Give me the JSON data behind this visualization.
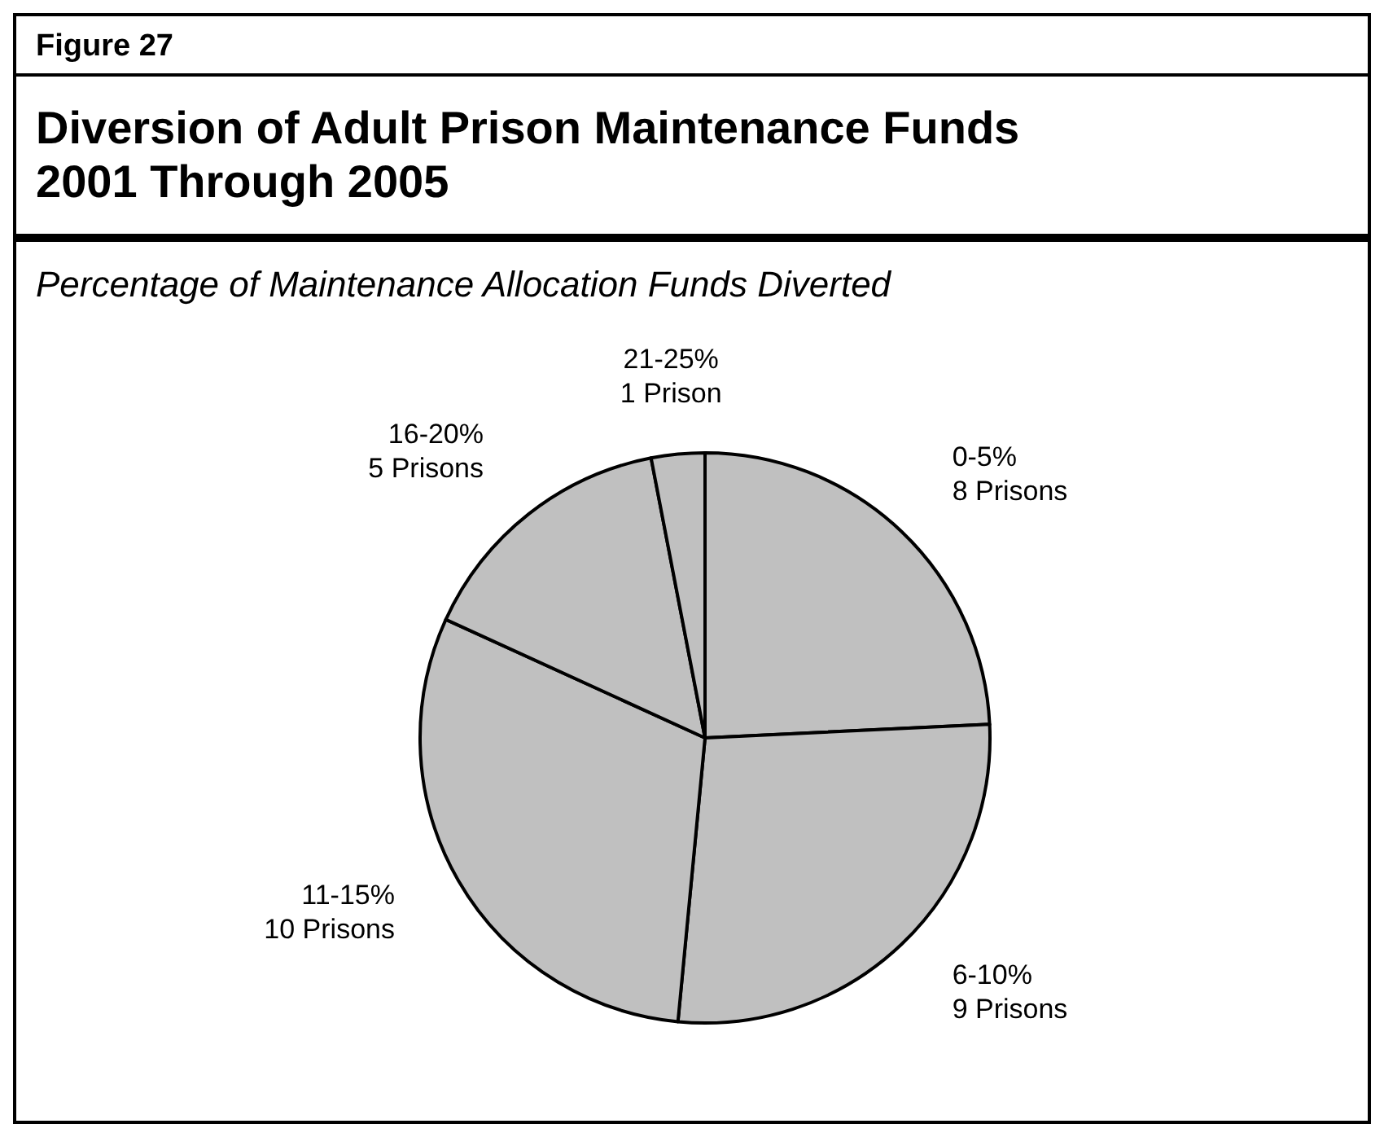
{
  "chart_data": {
    "type": "pie",
    "title": "Diversion of Adult Prison Maintenance Funds 2001 Through 2005",
    "subtitle": "Percentage of Maintenance Allocation Funds Diverted",
    "annotations": [
      "Figure 27"
    ],
    "categories": [
      "0-5%",
      "6-10%",
      "11-15%",
      "16-20%",
      "21-25%"
    ],
    "values": [
      8,
      9,
      10,
      5,
      1
    ],
    "value_labels": [
      "8 Prisons",
      "9 Prisons",
      "10 Prisons",
      "5 Prisons",
      "1 Prison"
    ],
    "colors": [
      "#c0c0c0",
      "#c0c0c0",
      "#c0c0c0",
      "#c0c0c0",
      "#c0c0c0"
    ]
  }
}
